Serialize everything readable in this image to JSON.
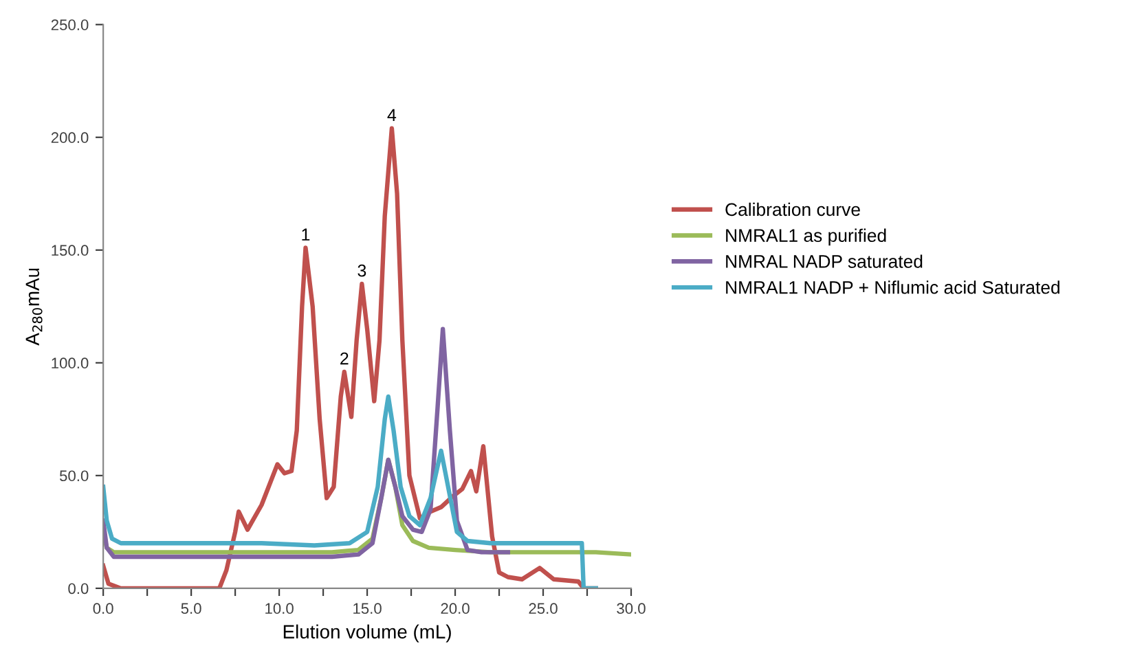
{
  "chart_data": {
    "type": "line",
    "xlabel": "Elution volume (mL)",
    "ylabel": "A$_{280}$mAu",
    "xlim": [
      0,
      30
    ],
    "ylim": [
      0,
      250
    ],
    "xticks": [
      {
        "value": 0,
        "label": "0.0"
      },
      {
        "value": 2.5,
        "label": null
      },
      {
        "value": 5,
        "label": "5.0"
      },
      {
        "value": 7.5,
        "label": null
      },
      {
        "value": 10,
        "label": "10.0"
      },
      {
        "value": 12.5,
        "label": null
      },
      {
        "value": 15,
        "label": "15.0"
      },
      {
        "value": 17.5,
        "label": null
      },
      {
        "value": 20,
        "label": "20.0"
      },
      {
        "value": 22.5,
        "label": null
      },
      {
        "value": 25,
        "label": "25.0"
      },
      {
        "value": 27.5,
        "label": null
      },
      {
        "value": 30,
        "label": "30.0"
      }
    ],
    "yticks": [
      {
        "value": 0,
        "label": "0.0"
      },
      {
        "value": 50,
        "label": "50.0"
      },
      {
        "value": 100,
        "label": "100.0"
      },
      {
        "value": 150,
        "label": "150.0"
      },
      {
        "value": 200,
        "label": "200.0"
      },
      {
        "value": 250,
        "label": "250.0"
      }
    ],
    "grid": false,
    "legend": "right",
    "marker": "none",
    "line_style": "solid",
    "annotations": [
      {
        "text": "1",
        "x": 11.5,
        "y": 151
      },
      {
        "text": "2",
        "x": 13.7,
        "y": 96
      },
      {
        "text": "3",
        "x": 14.7,
        "y": 135
      },
      {
        "text": "4",
        "x": 16.4,
        "y": 204
      }
    ],
    "series": [
      {
        "name": "Calibration curve",
        "color": "#c0504d",
        "x": [
          0,
          0.3,
          1,
          6.6,
          7.0,
          7.5,
          7.7,
          8.2,
          9.0,
          9.9,
          10.3,
          10.7,
          11.0,
          11.3,
          11.5,
          11.9,
          12.3,
          12.7,
          13.1,
          13.5,
          13.7,
          14.1,
          14.4,
          14.7,
          15.0,
          15.4,
          15.7,
          16.0,
          16.4,
          16.7,
          17.0,
          17.4,
          18.0,
          18.6,
          19.2,
          19.9,
          20.4,
          20.9,
          21.2,
          21.6,
          22.1,
          22.5,
          23.0,
          23.8,
          24.8,
          25.6,
          27.0,
          27.3,
          28.0
        ],
        "values": [
          10,
          2,
          0,
          0,
          8,
          25,
          34,
          26,
          37,
          55,
          51,
          52,
          70,
          125,
          151,
          125,
          75,
          40,
          45,
          85,
          96,
          76,
          110,
          135,
          115,
          83,
          110,
          165,
          204,
          175,
          110,
          50,
          31,
          34,
          36,
          41,
          44,
          52,
          43,
          63,
          23,
          7,
          5,
          4,
          9,
          4,
          3,
          0,
          0
        ]
      },
      {
        "name": "NMRAL1 as purified",
        "color": "#9bbb59",
        "x": [
          0,
          0.2,
          0.6,
          2,
          5,
          8,
          11,
          13,
          14.5,
          15.3,
          15.8,
          16.2,
          16.6,
          17.0,
          17.6,
          18.5,
          20,
          22,
          25,
          28,
          30
        ],
        "values": [
          25,
          18,
          16,
          16,
          16,
          16,
          16,
          16,
          17,
          22,
          40,
          57,
          45,
          28,
          21,
          18,
          17,
          16,
          16,
          16,
          15
        ]
      },
      {
        "name": "NMRAL NADP saturated",
        "color": "#8064a2",
        "x": [
          0,
          0.2,
          0.6,
          2,
          5,
          8,
          11,
          13,
          14.5,
          15.3,
          15.8,
          16.2,
          16.6,
          17.0,
          17.6,
          18.1,
          18.6,
          19.0,
          19.3,
          19.7,
          20.1,
          20.7,
          21.5,
          23.0
        ],
        "values": [
          30,
          18,
          14,
          14,
          14,
          14,
          14,
          14,
          15,
          20,
          40,
          57,
          45,
          32,
          26,
          25,
          35,
          80,
          115,
          70,
          30,
          17,
          16,
          16
        ]
      },
      {
        "name": "NMRAL1 NADP + Niflumic acid Saturated",
        "color": "#4bacc6",
        "x": [
          0,
          0.2,
          0.5,
          1,
          3,
          6,
          9,
          12,
          14,
          15.0,
          15.6,
          16.0,
          16.2,
          16.5,
          16.9,
          17.4,
          18.0,
          18.6,
          19.2,
          19.6,
          20.1,
          20.7,
          22,
          24,
          26,
          27.2,
          27.3,
          28.0
        ],
        "values": [
          45,
          30,
          22,
          20,
          20,
          20,
          20,
          19,
          20,
          25,
          45,
          75,
          85,
          70,
          45,
          32,
          28,
          40,
          61,
          45,
          25,
          21,
          20,
          20,
          20,
          20,
          0,
          0
        ]
      }
    ]
  }
}
